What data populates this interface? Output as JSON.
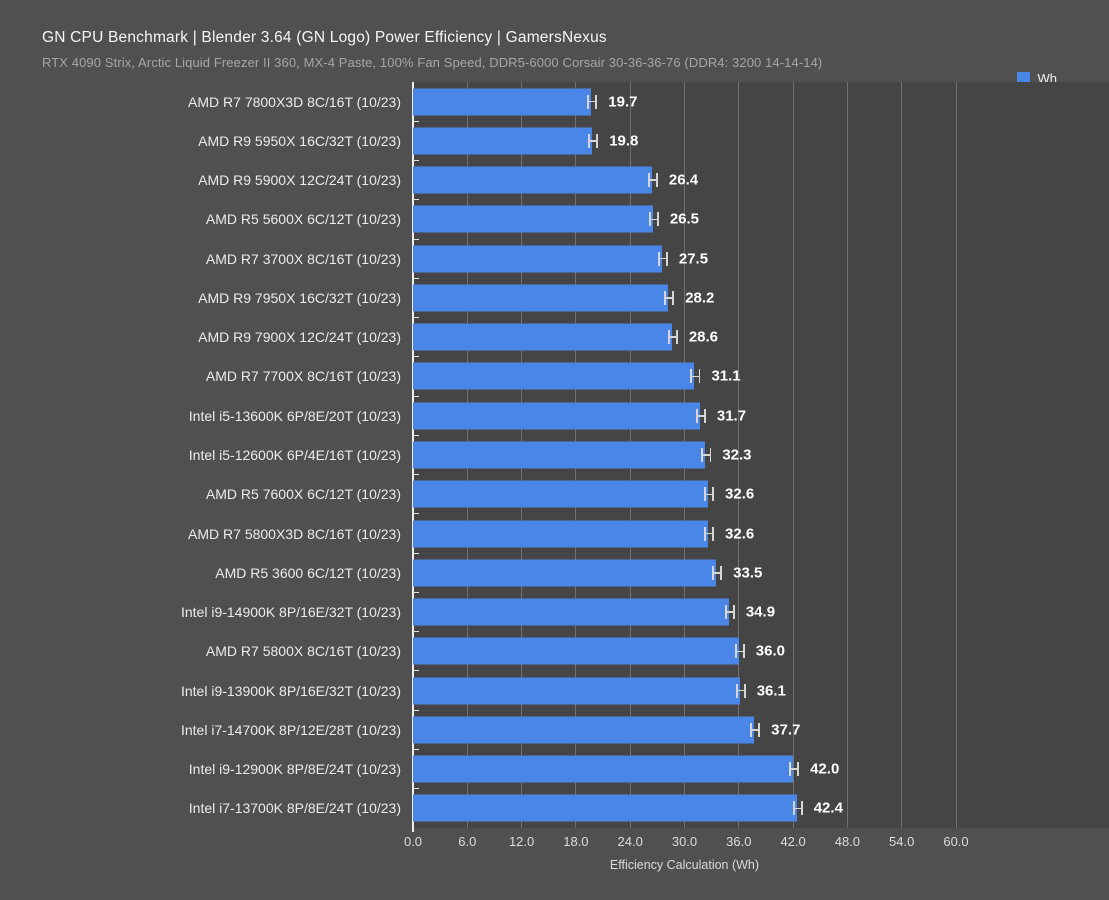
{
  "header": {
    "title": "GN CPU Benchmark | Blender 3.64 (GN Logo) Power Efficiency | GamersNexus",
    "subtitle": "RTX 4090 Strix, Arctic Liquid Freezer II 360, MX-4 Paste, 100% Fan Speed, DDR5-6000 Corsair 30-36-36-76 (DDR4: 3200 14-14-14)"
  },
  "legend": {
    "label": "Wh",
    "color": "#4a86e8",
    "position": "top-right"
  },
  "chart_data": {
    "type": "bar",
    "orientation": "horizontal",
    "title": "GN CPU Benchmark | Blender 3.64 (GN Logo) Power Efficiency | GamersNexus",
    "subtitle": "RTX 4090 Strix, Arctic Liquid Freezer II 360, MX-4 Paste, 100% Fan Speed, DDR5-6000 Corsair 30-36-36-76 (DDR4: 3200 14-14-14)",
    "xlabel": "Efficiency Calculation (Wh)",
    "ylabel": "",
    "xlim": [
      0,
      60
    ],
    "grid": true,
    "grid_interval": 6.0,
    "series_name": "Wh",
    "categories": [
      "AMD R7 7800X3D 8C/16T (10/23)",
      "AMD R9 5950X 16C/32T (10/23)",
      "AMD R9 5900X 12C/24T (10/23)",
      "AMD R5 5600X 6C/12T (10/23)",
      "AMD R7 3700X 8C/16T (10/23)",
      "AMD R9 7950X 16C/32T (10/23)",
      "AMD R9 7900X 12C/24T (10/23)",
      "AMD R7 7700X 8C/16T (10/23)",
      "Intel i5-13600K 6P/8E/20T (10/23)",
      "Intel i5-12600K 6P/4E/16T (10/23)",
      "AMD R5 7600X 6C/12T (10/23)",
      "AMD R7 5800X3D 8C/16T (10/23)",
      "AMD R5 3600 6C/12T (10/23)",
      "Intel i9-14900K 8P/16E/32T (10/23)",
      "AMD R7 5800X 8C/16T (10/23)",
      "Intel i9-13900K 8P/16E/32T (10/23)",
      "Intel i7-14700K 8P/12E/28T (10/23)",
      "Intel i9-12900K 8P/8E/24T (10/23)",
      "Intel i7-13700K 8P/8E/24T (10/23)"
    ],
    "values": [
      19.7,
      19.8,
      26.4,
      26.5,
      27.5,
      28.2,
      28.6,
      31.1,
      31.7,
      32.3,
      32.6,
      32.6,
      33.5,
      34.9,
      36.0,
      36.1,
      37.7,
      42.0,
      42.4
    ],
    "value_labels": [
      "19.7",
      "19.8",
      "26.4",
      "26.5",
      "27.5",
      "28.2",
      "28.6",
      "31.1",
      "31.7",
      "32.3",
      "32.6",
      "32.6",
      "33.5",
      "34.9",
      "36.0",
      "36.1",
      "37.7",
      "42.0",
      "42.4"
    ],
    "xtick_labels": [
      "0.0",
      "6.0",
      "12.0",
      "18.0",
      "24.0",
      "30.0",
      "36.0",
      "42.0",
      "48.0",
      "54.0",
      "60.0"
    ],
    "error_bars": true,
    "colors": {
      "bar": "#4a86e8",
      "background": "#505050",
      "plot_background": "#454545",
      "gridline": "#7f7f7f",
      "axis_line": "#ededed",
      "value_label": "#ffffff",
      "category_label": "#ebebeb",
      "error_bar": "#d6d6d6"
    }
  }
}
